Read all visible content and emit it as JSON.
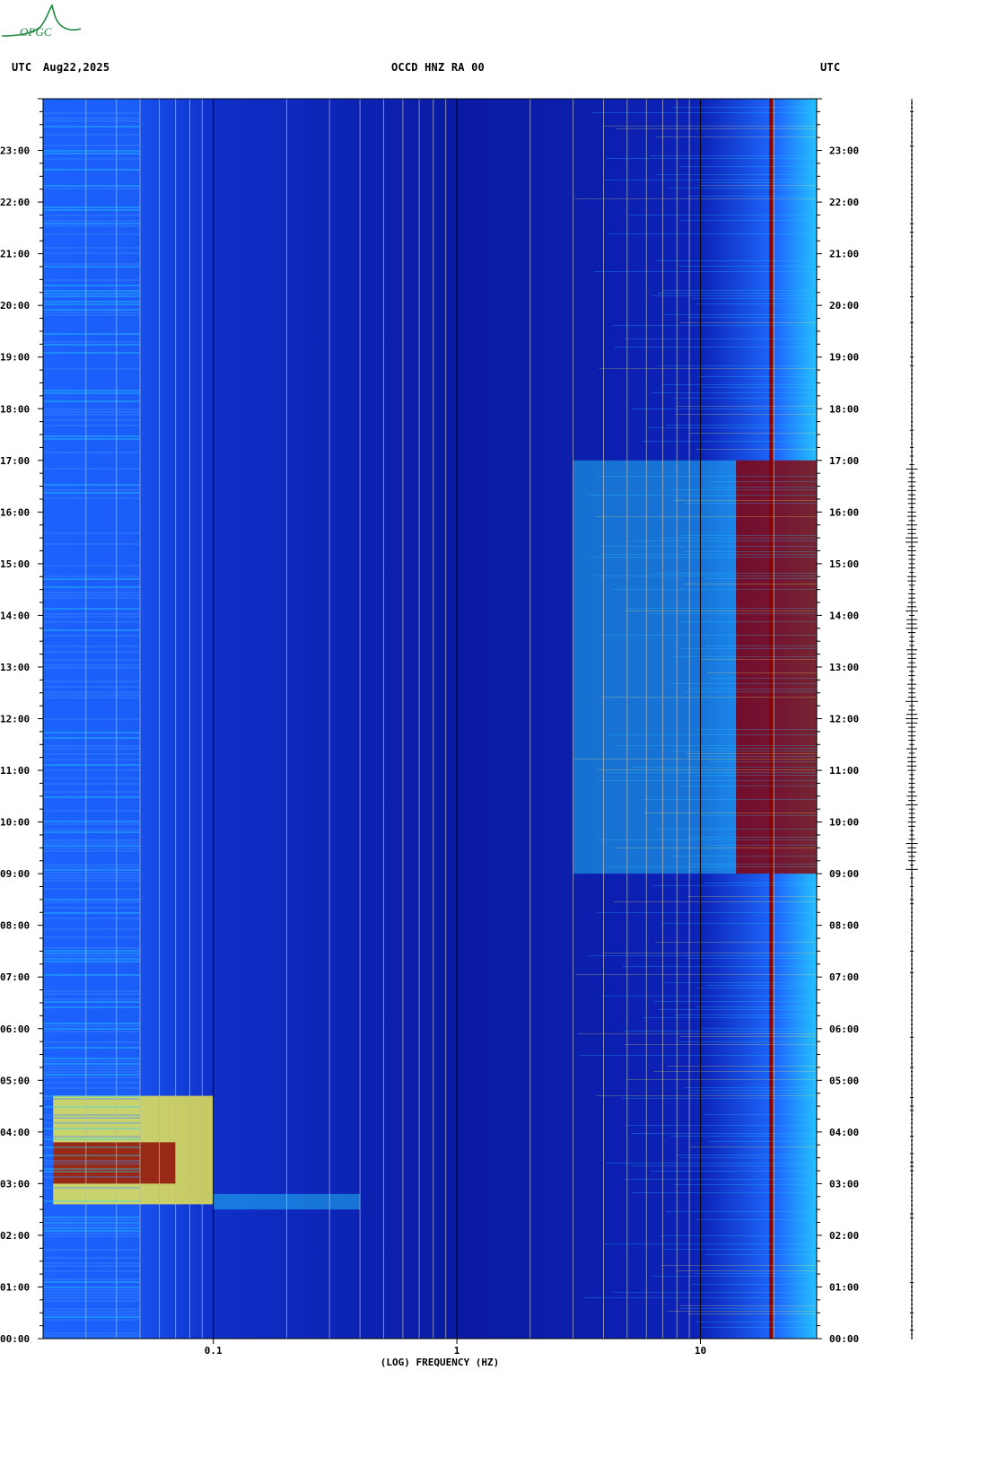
{
  "header": {
    "left_tz": "UTC",
    "date": "Aug22,2025",
    "station": "OCCD HNZ RA 00",
    "right_tz": "UTC"
  },
  "logo": {
    "text": "OPGC",
    "color": "#1e8a3e"
  },
  "colors": {
    "background_low": "#0a1ea0",
    "mid": "#1f6bff",
    "cyan": "#25d6ff",
    "yellow": "#f5f04a",
    "high": "#8b0000",
    "grid_major": "#000000",
    "grid_minor": "#b8b8b8"
  },
  "chart_data": {
    "type": "heatmap",
    "xlabel": "(LOG) FREQUENCY (HZ)",
    "ylabel": "",
    "x_scale": "log",
    "xlim": [
      0.02,
      30
    ],
    "x_tick_labels": [
      {
        "value": 0.1,
        "label": "0.1"
      },
      {
        "value": 1,
        "label": "1"
      },
      {
        "value": 10,
        "label": "10"
      }
    ],
    "x_major_grid": [
      0.1,
      1,
      10
    ],
    "x_minor_grid": [
      0.03,
      0.04,
      0.05,
      0.06,
      0.07,
      0.08,
      0.09,
      0.2,
      0.3,
      0.4,
      0.5,
      0.6,
      0.7,
      0.8,
      0.9,
      2,
      3,
      4,
      5,
      6,
      7,
      8,
      9,
      20
    ],
    "ylim_hours": [
      0,
      24
    ],
    "y_tick_labels": [
      "00:00",
      "01:00",
      "02:00",
      "03:00",
      "04:00",
      "05:00",
      "06:00",
      "07:00",
      "08:00",
      "09:00",
      "10:00",
      "11:00",
      "12:00",
      "13:00",
      "14:00",
      "15:00",
      "16:00",
      "17:00",
      "18:00",
      "19:00",
      "20:00",
      "21:00",
      "22:00",
      "23:00"
    ],
    "features": [
      {
        "name": "",
        "type": "band",
        "freq": [
          0.02,
          0.05
        ],
        "time": [
          0,
          24
        ],
        "level": "mid"
      },
      {
        "name": "",
        "type": "band",
        "freq": [
          0.022,
          0.07
        ],
        "time": [
          3.0,
          3.8
        ],
        "level": "high"
      },
      {
        "name": "",
        "type": "band",
        "freq": [
          0.022,
          0.1
        ],
        "time": [
          2.6,
          4.7
        ],
        "level": "yellow"
      },
      {
        "name": "",
        "type": "band",
        "freq": [
          0.1,
          0.4
        ],
        "time": [
          2.5,
          2.8
        ],
        "level": "cyan"
      },
      {
        "name": "",
        "type": "line",
        "freq": 19.5,
        "time": [
          0,
          24
        ],
        "level": "high"
      },
      {
        "name": "",
        "type": "band",
        "freq": [
          14,
          30
        ],
        "time": [
          9,
          17
        ],
        "level": "high"
      },
      {
        "name": "",
        "type": "band",
        "freq": [
          3,
          14
        ],
        "time": [
          9,
          17
        ],
        "level": "cyan"
      }
    ]
  }
}
